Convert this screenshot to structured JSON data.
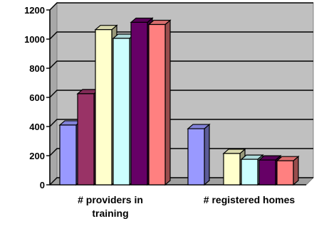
{
  "chart_data": {
    "type": "bar",
    "title": "",
    "xlabel": "",
    "ylabel": "",
    "ylim": [
      0,
      1200
    ],
    "yticks": [
      "0",
      "200",
      "400",
      "600",
      "800",
      "1000",
      "1200"
    ],
    "grid": true,
    "legend": "none",
    "categories": [
      [
        "# providers in",
        "training"
      ],
      [
        "# registered homes"
      ]
    ],
    "series": [
      {
        "values": [
          410,
          385
        ],
        "color": "#9999ff"
      },
      {
        "values": [
          625,
          null
        ],
        "color": "#993366"
      },
      {
        "values": [
          1065,
          215
        ],
        "color": "#ffffcc"
      },
      {
        "values": [
          1005,
          175
        ],
        "color": "#ccffff"
      },
      {
        "values": [
          1115,
          170
        ],
        "color": "#660066"
      },
      {
        "values": [
          1100,
          165
        ],
        "color": "#ff8080"
      }
    ],
    "colors": {
      "wall": "#c0c0c0",
      "floor": "#c0c0c0",
      "gridline": "#000000"
    }
  }
}
